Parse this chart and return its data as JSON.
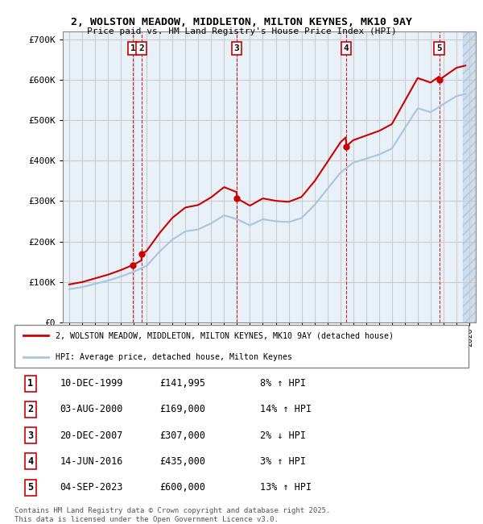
{
  "title": "2, WOLSTON MEADOW, MIDDLETON, MILTON KEYNES, MK10 9AY",
  "subtitle": "Price paid vs. HM Land Registry's House Price Index (HPI)",
  "legend_line1": "2, WOLSTON MEADOW, MIDDLETON, MILTON KEYNES, MK10 9AY (detached house)",
  "legend_line2": "HPI: Average price, detached house, Milton Keynes",
  "footer": "Contains HM Land Registry data © Crown copyright and database right 2025.\nThis data is licensed under the Open Government Licence v3.0.",
  "sale_dates_decimal": [
    1999.94,
    2000.59,
    2007.97,
    2016.45,
    2023.67
  ],
  "sale_prices": [
    141995,
    169000,
    307000,
    435000,
    600000
  ],
  "sale_labels": [
    "1",
    "2",
    "3",
    "4",
    "5"
  ],
  "table_rows": [
    [
      "1",
      "10-DEC-1999",
      "£141,995",
      "8% ↑ HPI"
    ],
    [
      "2",
      "03-AUG-2000",
      "£169,000",
      "14% ↑ HPI"
    ],
    [
      "3",
      "20-DEC-2007",
      "£307,000",
      "2% ↓ HPI"
    ],
    [
      "4",
      "14-JUN-2016",
      "£435,000",
      "3% ↑ HPI"
    ],
    [
      "5",
      "04-SEP-2023",
      "£600,000",
      "13% ↑ HPI"
    ]
  ],
  "ylim": [
    0,
    720000
  ],
  "xlim": [
    1994.5,
    2026.5
  ],
  "yticks": [
    0,
    100000,
    200000,
    300000,
    400000,
    500000,
    600000,
    700000
  ],
  "ytick_labels": [
    "£0",
    "£100K",
    "£200K",
    "£300K",
    "£400K",
    "£500K",
    "£600K",
    "£700K"
  ],
  "red_color": "#cc0000",
  "blue_color": "#aac4dd",
  "grid_color": "#cccccc",
  "bg_color": "#e8f0f8",
  "hatch_color": "#c8d8e8",
  "hpi_anchors": [
    [
      1995.0,
      82000
    ],
    [
      1996.0,
      87000
    ],
    [
      1997.0,
      95000
    ],
    [
      1998.0,
      103000
    ],
    [
      1999.0,
      113000
    ],
    [
      2000.0,
      125000
    ],
    [
      2001.0,
      140000
    ],
    [
      2002.0,
      175000
    ],
    [
      2003.0,
      205000
    ],
    [
      2004.0,
      225000
    ],
    [
      2005.0,
      230000
    ],
    [
      2006.0,
      245000
    ],
    [
      2007.0,
      265000
    ],
    [
      2008.0,
      255000
    ],
    [
      2009.0,
      240000
    ],
    [
      2010.0,
      255000
    ],
    [
      2011.0,
      250000
    ],
    [
      2012.0,
      248000
    ],
    [
      2013.0,
      258000
    ],
    [
      2014.0,
      290000
    ],
    [
      2015.0,
      330000
    ],
    [
      2016.0,
      370000
    ],
    [
      2017.0,
      395000
    ],
    [
      2018.0,
      405000
    ],
    [
      2019.0,
      415000
    ],
    [
      2020.0,
      430000
    ],
    [
      2021.0,
      480000
    ],
    [
      2022.0,
      530000
    ],
    [
      2023.0,
      520000
    ],
    [
      2024.0,
      540000
    ],
    [
      2025.0,
      560000
    ],
    [
      2025.7,
      565000
    ]
  ]
}
